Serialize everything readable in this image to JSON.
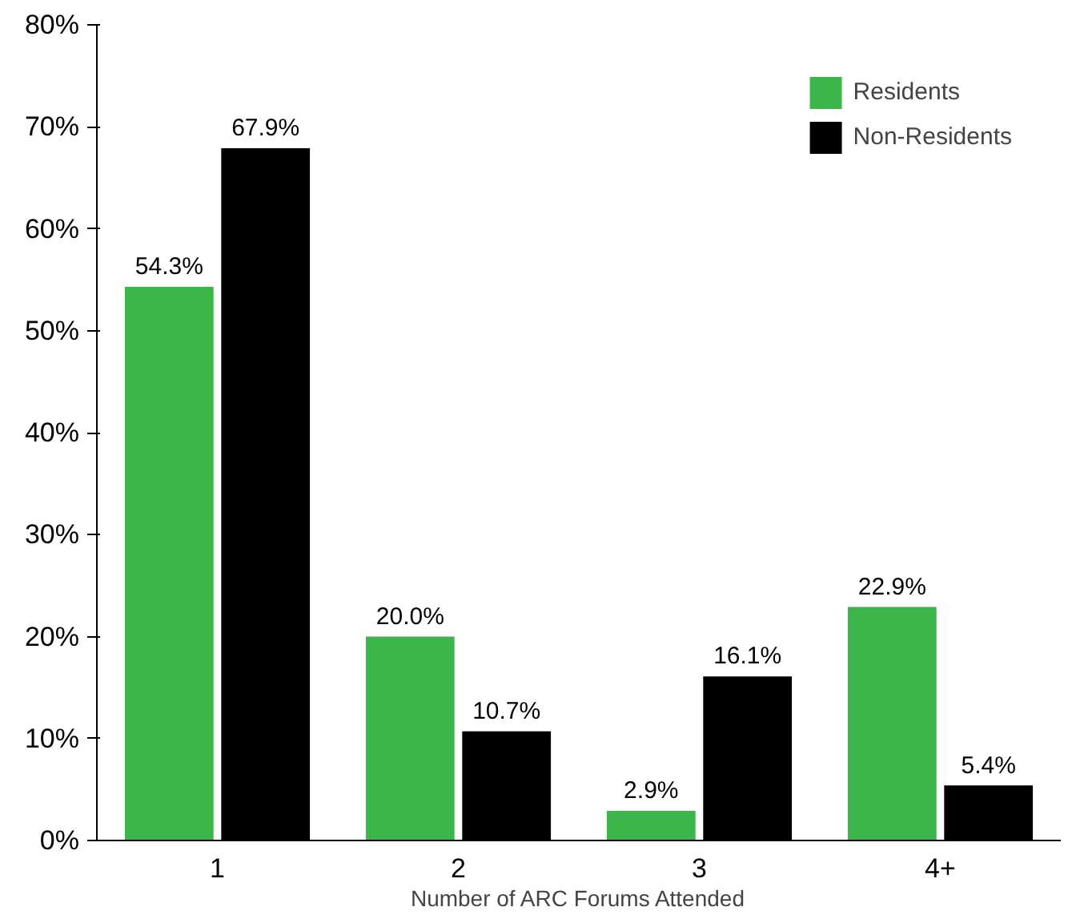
{
  "chart_data": {
    "type": "bar",
    "xlabel": "Number of ARC Forums Attended",
    "categories": [
      "1",
      "2",
      "3",
      "4+"
    ],
    "series": [
      {
        "name": "Residents",
        "color": "#3cb54a",
        "values": [
          54.3,
          20.0,
          2.9,
          22.9
        ],
        "value_labels": [
          "54.3%",
          "20.0%",
          "2.9%",
          "22.9%"
        ]
      },
      {
        "name": "Non-Residents",
        "color": "#000000",
        "values": [
          67.9,
          10.7,
          16.1,
          5.4
        ],
        "value_labels": [
          "67.9%",
          "10.7%",
          "16.1%",
          "5.4%"
        ]
      }
    ],
    "ylim": [
      0,
      80
    ],
    "yticks": [
      {
        "value": 0,
        "label": "0%"
      },
      {
        "value": 10,
        "label": "10%"
      },
      {
        "value": 20,
        "label": "20%"
      },
      {
        "value": 30,
        "label": "30%"
      },
      {
        "value": 40,
        "label": "40%"
      },
      {
        "value": 50,
        "label": "50%"
      },
      {
        "value": 60,
        "label": "60%"
      },
      {
        "value": 70,
        "label": "70%"
      },
      {
        "value": 80,
        "label": "80%"
      }
    ],
    "grid": false,
    "legend": "top right"
  }
}
